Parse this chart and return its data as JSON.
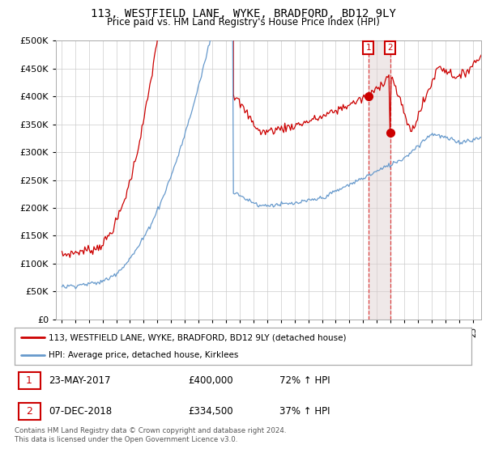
{
  "title": "113, WESTFIELD LANE, WYKE, BRADFORD, BD12 9LY",
  "subtitle": "Price paid vs. HM Land Registry's House Price Index (HPI)",
  "legend_line1": "113, WESTFIELD LANE, WYKE, BRADFORD, BD12 9LY (detached house)",
  "legend_line2": "HPI: Average price, detached house, Kirklees",
  "footer": "Contains HM Land Registry data © Crown copyright and database right 2024.\nThis data is licensed under the Open Government Licence v3.0.",
  "annotation1": {
    "label": "1",
    "date": "23-MAY-2017",
    "price": "£400,000",
    "hpi": "72% ↑ HPI"
  },
  "annotation2": {
    "label": "2",
    "date": "07-DEC-2018",
    "price": "£334,500",
    "hpi": "37% ↑ HPI"
  },
  "ylim": [
    0,
    500000
  ],
  "yticks": [
    0,
    50000,
    100000,
    150000,
    200000,
    250000,
    300000,
    350000,
    400000,
    450000,
    500000
  ],
  "line1_color": "#cc0000",
  "line2_color": "#6699cc",
  "marker_color": "#cc0000",
  "vline_color": "#dd4444",
  "shade_color": "#ddcccc",
  "annotation_box_color": "#cc0000",
  "bg_color": "#ffffff",
  "grid_color": "#cccccc"
}
